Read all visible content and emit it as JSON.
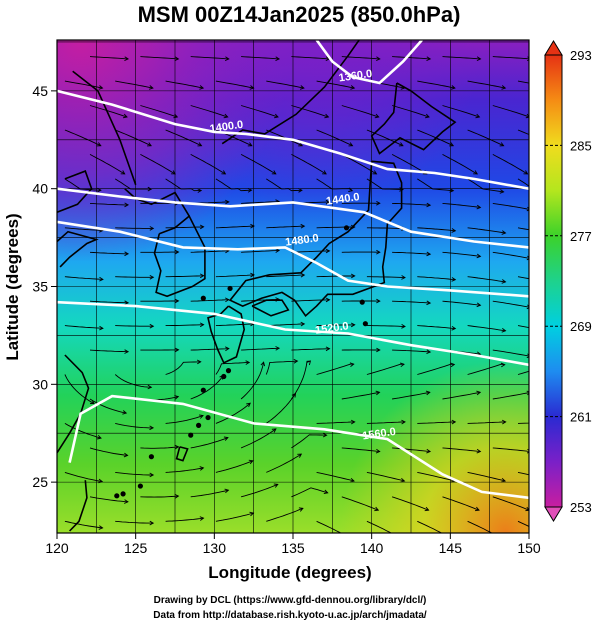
{
  "chart_data": {
    "type": "heatmap",
    "title": "MSM 00Z14Jan2025 (850.0hPa)",
    "xlabel": "Longitude (degrees)",
    "ylabel": "Latitude  (degrees)",
    "xlim": [
      120,
      150
    ],
    "ylim": [
      22.4,
      47.6
    ],
    "x_ticks": [
      120,
      125,
      130,
      135,
      140,
      145,
      150
    ],
    "y_ticks": [
      25,
      30,
      35,
      40,
      45
    ],
    "grid": true,
    "colorbar": {
      "min": 253,
      "max": 293,
      "ticks": [
        253,
        261,
        269,
        277,
        285,
        293
      ],
      "colors": [
        "#c81ea0",
        "#7a20c8",
        "#2a2ad2",
        "#1e8cf0",
        "#00d0e0",
        "#1ed28c",
        "#3cd22a",
        "#b4e61e",
        "#f0dc1e",
        "#f58c14",
        "#e63214"
      ]
    },
    "contours": [
      {
        "label": "1360.0",
        "lon": 139.0,
        "lat": 45.6
      },
      {
        "label": "1400.0",
        "lon": 130.8,
        "lat": 43.0
      },
      {
        "label": "1440.0",
        "lon": 138.2,
        "lat": 39.3
      },
      {
        "label": "1480.0",
        "lon": 135.6,
        "lat": 37.2
      },
      {
        "label": "1520.0",
        "lon": 137.5,
        "lat": 32.7
      },
      {
        "label": "1560.0",
        "lon": 140.5,
        "lat": 27.3
      }
    ]
  },
  "credits": {
    "line1": "Drawing by DCL (https://www.gfd-dennou.org/library/dcl/)",
    "line2": "Data from http://database.rish.kyoto-u.ac.jp/arch/jmadata/"
  }
}
